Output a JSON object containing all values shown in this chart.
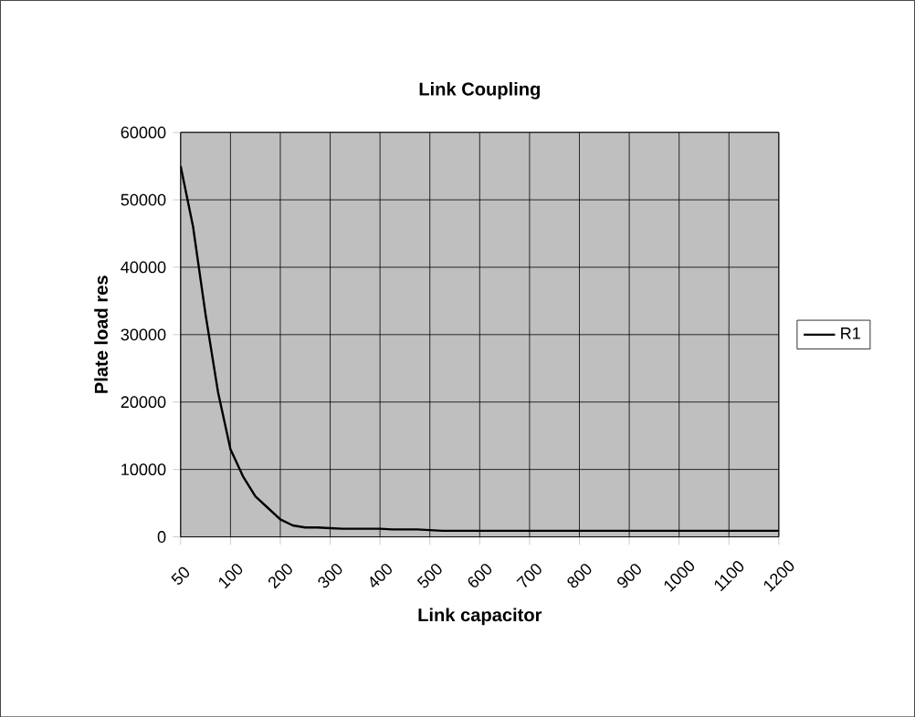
{
  "chart_data": {
    "type": "line",
    "title": "Link Coupling",
    "xlabel": "Link capacitor",
    "ylabel": "Plate load res",
    "categories": [
      "50",
      null,
      null,
      null,
      "100",
      null,
      null,
      null,
      "200",
      null,
      null,
      null,
      "300",
      null,
      null,
      null,
      "400",
      null,
      null,
      null,
      "500",
      null,
      null,
      null,
      "600",
      null,
      null,
      null,
      "700",
      null,
      null,
      null,
      "800",
      null,
      null,
      null,
      "900",
      null,
      null,
      null,
      "1000",
      null,
      null,
      null,
      "1100",
      null,
      null,
      null,
      "1200"
    ],
    "series": [
      {
        "name": "R1",
        "color": "#000000",
        "values": [
          55000,
          46000,
          33000,
          21500,
          13000,
          9000,
          6000,
          4300,
          2600,
          1700,
          1400,
          1400,
          1300,
          1200,
          1200,
          1200,
          1200,
          1100,
          1100,
          1100,
          1000,
          900,
          900,
          900,
          900,
          900,
          900,
          900,
          900,
          900,
          900,
          900,
          900,
          900,
          900,
          900,
          900,
          900,
          900,
          900,
          900,
          900,
          900,
          900,
          900,
          900,
          900,
          900,
          900
        ]
      }
    ],
    "ylim": [
      0,
      60000
    ],
    "yticks": [
      0,
      10000,
      20000,
      30000,
      40000,
      50000,
      60000
    ],
    "grid": true,
    "legend": "right",
    "marker": "none"
  }
}
